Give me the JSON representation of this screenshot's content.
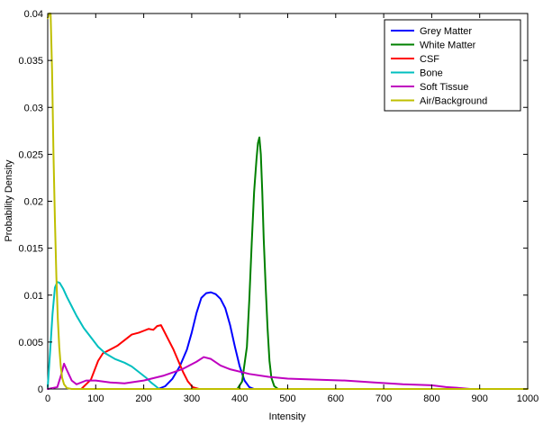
{
  "chart_data": {
    "type": "line",
    "title": "",
    "xlabel": "Intensity",
    "ylabel": "Probability Density",
    "xlim": [
      0,
      1000
    ],
    "ylim": [
      0,
      0.04
    ],
    "x_ticks": [
      0,
      100,
      200,
      300,
      400,
      500,
      600,
      700,
      800,
      900,
      1000
    ],
    "y_ticks": [
      0,
      0.005,
      0.01,
      0.015,
      0.02,
      0.025,
      0.03,
      0.035,
      0.04
    ],
    "x_tick_labels": [
      "0",
      "100",
      "200",
      "300",
      "400",
      "500",
      "600",
      "700",
      "800",
      "900",
      "1000"
    ],
    "y_tick_labels": [
      "0",
      "0.005",
      "0.01",
      "0.015",
      "0.02",
      "0.025",
      "0.03",
      "0.035",
      "0.04"
    ],
    "grid": false,
    "legend_position": "top-right",
    "series": [
      {
        "name": "Grey Matter",
        "color": "#0000ff",
        "points": [
          [
            230,
            0
          ],
          [
            245,
            0.0003
          ],
          [
            260,
            0.0011
          ],
          [
            275,
            0.0024
          ],
          [
            290,
            0.0042
          ],
          [
            300,
            0.006
          ],
          [
            310,
            0.0081
          ],
          [
            320,
            0.0097
          ],
          [
            330,
            0.0102
          ],
          [
            340,
            0.0103
          ],
          [
            350,
            0.0101
          ],
          [
            360,
            0.0096
          ],
          [
            370,
            0.0086
          ],
          [
            380,
            0.0068
          ],
          [
            390,
            0.0045
          ],
          [
            400,
            0.0024
          ],
          [
            410,
            0.0009
          ],
          [
            420,
            0.0002
          ],
          [
            430,
            0
          ]
        ]
      },
      {
        "name": "White Matter",
        "color": "#008000",
        "points": [
          [
            395,
            0
          ],
          [
            405,
            0.0008
          ],
          [
            415,
            0.0045
          ],
          [
            420,
            0.0095
          ],
          [
            425,
            0.0155
          ],
          [
            430,
            0.021
          ],
          [
            435,
            0.0245
          ],
          [
            438,
            0.0262
          ],
          [
            441,
            0.0268
          ],
          [
            444,
            0.025
          ],
          [
            447,
            0.021
          ],
          [
            450,
            0.016
          ],
          [
            454,
            0.011
          ],
          [
            458,
            0.0065
          ],
          [
            462,
            0.003
          ],
          [
            466,
            0.0012
          ],
          [
            472,
            0.0003
          ],
          [
            480,
            0
          ]
        ]
      },
      {
        "name": "CSF",
        "color": "#ff0000",
        "points": [
          [
            70,
            0
          ],
          [
            90,
            0.001
          ],
          [
            105,
            0.003
          ],
          [
            115,
            0.0038
          ],
          [
            130,
            0.0042
          ],
          [
            145,
            0.0046
          ],
          [
            160,
            0.0052
          ],
          [
            175,
            0.0058
          ],
          [
            190,
            0.006
          ],
          [
            200,
            0.0062
          ],
          [
            210,
            0.0064
          ],
          [
            220,
            0.0063
          ],
          [
            228,
            0.0067
          ],
          [
            236,
            0.0068
          ],
          [
            242,
            0.0062
          ],
          [
            252,
            0.0052
          ],
          [
            262,
            0.0042
          ],
          [
            272,
            0.003
          ],
          [
            282,
            0.0018
          ],
          [
            292,
            0.0008
          ],
          [
            302,
            0.0002
          ],
          [
            315,
            0
          ]
        ]
      },
      {
        "name": "Bone",
        "color": "#00bfbf",
        "points": [
          [
            0,
            0.0002
          ],
          [
            5,
            0.004
          ],
          [
            10,
            0.008
          ],
          [
            15,
            0.0108
          ],
          [
            20,
            0.0114
          ],
          [
            25,
            0.0113
          ],
          [
            32,
            0.0107
          ],
          [
            40,
            0.0098
          ],
          [
            50,
            0.0088
          ],
          [
            60,
            0.0078
          ],
          [
            75,
            0.0065
          ],
          [
            90,
            0.0055
          ],
          [
            105,
            0.0045
          ],
          [
            120,
            0.0038
          ],
          [
            140,
            0.0032
          ],
          [
            160,
            0.0028
          ],
          [
            175,
            0.0024
          ],
          [
            190,
            0.0018
          ],
          [
            205,
            0.0012
          ],
          [
            215,
            0.0007
          ],
          [
            225,
            0.0003
          ],
          [
            232,
            0
          ]
        ]
      },
      {
        "name": "Soft Tissue",
        "color": "#bf00bf",
        "points": [
          [
            0,
            0
          ],
          [
            20,
            0.0002
          ],
          [
            28,
            0.0015
          ],
          [
            34,
            0.0027
          ],
          [
            40,
            0.002
          ],
          [
            50,
            0.0009
          ],
          [
            60,
            0.0005
          ],
          [
            80,
            0.0009
          ],
          [
            100,
            0.0009
          ],
          [
            130,
            0.0007
          ],
          [
            160,
            0.0006
          ],
          [
            200,
            0.0009
          ],
          [
            240,
            0.0014
          ],
          [
            280,
            0.0021
          ],
          [
            310,
            0.0029
          ],
          [
            325,
            0.0034
          ],
          [
            340,
            0.0032
          ],
          [
            360,
            0.0025
          ],
          [
            380,
            0.0021
          ],
          [
            420,
            0.0016
          ],
          [
            460,
            0.0013
          ],
          [
            500,
            0.0011
          ],
          [
            560,
            0.001
          ],
          [
            620,
            0.0009
          ],
          [
            680,
            0.0007
          ],
          [
            740,
            0.0005
          ],
          [
            800,
            0.0004
          ],
          [
            830,
            0.0002
          ],
          [
            860,
            0.0001
          ],
          [
            880,
            0
          ]
        ]
      },
      {
        "name": "Air/Background",
        "color": "#bfbf00",
        "points": [
          [
            0,
            0.0395
          ],
          [
            3,
            0.04
          ],
          [
            6,
            0.04
          ],
          [
            9,
            0.034
          ],
          [
            12,
            0.025
          ],
          [
            15,
            0.018
          ],
          [
            18,
            0.012
          ],
          [
            21,
            0.0075
          ],
          [
            24,
            0.0045
          ],
          [
            27,
            0.0025
          ],
          [
            30,
            0.0012
          ],
          [
            34,
            0.0005
          ],
          [
            40,
            0.0001
          ],
          [
            50,
            0
          ],
          [
            1000,
            0
          ]
        ]
      }
    ]
  }
}
